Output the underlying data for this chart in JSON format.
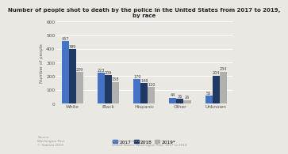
{
  "title": "Number of people shot to death by the police in the United States from 2017 to 2019,\nby race",
  "categories": [
    "White",
    "Black",
    "Hispanic",
    "Other",
    "Unknown"
  ],
  "years": [
    "2017",
    "2018",
    "2019*"
  ],
  "values": {
    "2017": [
      457,
      223,
      179,
      44,
      56
    ],
    "2018": [
      399,
      209,
      148,
      36,
      204
    ],
    "2019*": [
      229,
      158,
      120,
      26,
      234
    ]
  },
  "colors": {
    "2017": "#4472c4",
    "2018": "#1f3864",
    "2019*": "#b0b0b0"
  },
  "ylabel": "Number of people",
  "ylim": [
    0,
    600
  ],
  "yticks": [
    0,
    100,
    200,
    300,
    400,
    500,
    600
  ],
  "background_color": "#eae8e3",
  "grid_color": "#ffffff",
  "title_fontsize": 5.0,
  "label_fontsize": 4.0,
  "tick_fontsize": 4.2,
  "bar_label_fontsize": 3.5,
  "legend_fontsize": 4.2
}
